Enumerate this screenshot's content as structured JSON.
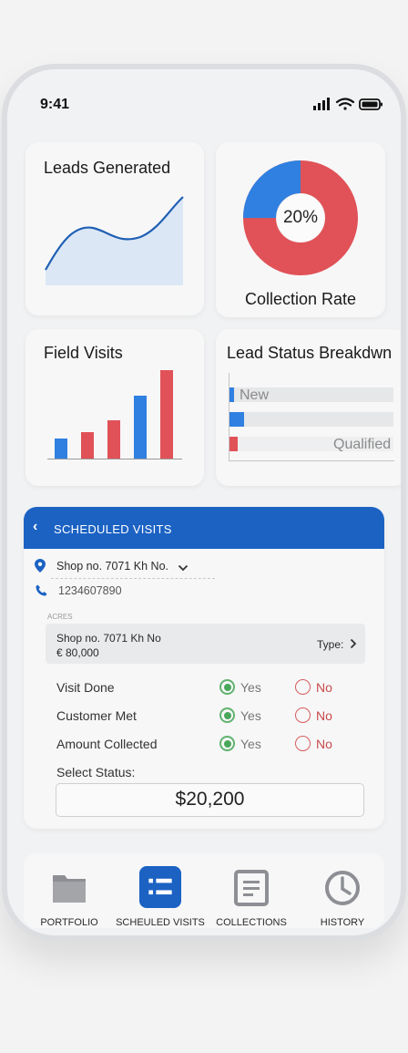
{
  "status_bar": {
    "time": "9:41"
  },
  "cards": {
    "leads": {
      "title": "Leads Generated"
    },
    "collection": {
      "title": "Collection Rate",
      "percent_label": "20%",
      "percent": 20
    },
    "field_visits": {
      "title": "Field Visits",
      "bar_values": [
        20,
        27,
        38,
        62,
        88
      ]
    },
    "lead_status": {
      "title": "Lead Status Breakdwn",
      "rows": [
        {
          "label": "New",
          "value": 3
        },
        {
          "label": "",
          "value": 8
        },
        {
          "label": "Qualified",
          "value": 4
        }
      ]
    }
  },
  "scheduled_visits": {
    "header": "SCHEDULED VISITS",
    "shop_select": "Shop no. 7071 Kh No.",
    "phone": "1234607890",
    "acres_label": "ACRES",
    "shop_box": {
      "line1": "Shop no. 7071 Kh No",
      "line2": "€ 80,000",
      "type_label": "Type:"
    },
    "questions": [
      {
        "label": "Visit Done",
        "yes": "Yes",
        "no": "No",
        "selected": "yes"
      },
      {
        "label": "Customer Met",
        "yes": "Yes",
        "no": "No",
        "selected": "yes"
      },
      {
        "label": "Amount Collected",
        "yes": "Yes",
        "no": "No",
        "selected": "yes"
      }
    ],
    "select_status_label": "Select Status:",
    "status_value": "$20,200"
  },
  "nav": {
    "items": [
      {
        "label": "PORTFOLIO",
        "icon": "folder-icon"
      },
      {
        "label": "SCHEULED VISITS",
        "icon": "list-icon",
        "active": true
      },
      {
        "label": "COLLECTIONS",
        "icon": "document-icon"
      },
      {
        "label": "HISTORY",
        "icon": "clock-icon"
      }
    ]
  },
  "colors": {
    "primary": "#1b62c3",
    "chart_blue": "#2f80e0",
    "chart_red": "#e05257",
    "area_fill": "#dbe7f5",
    "yes_green": "#4aa75a",
    "no_red": "#c94a4a"
  }
}
